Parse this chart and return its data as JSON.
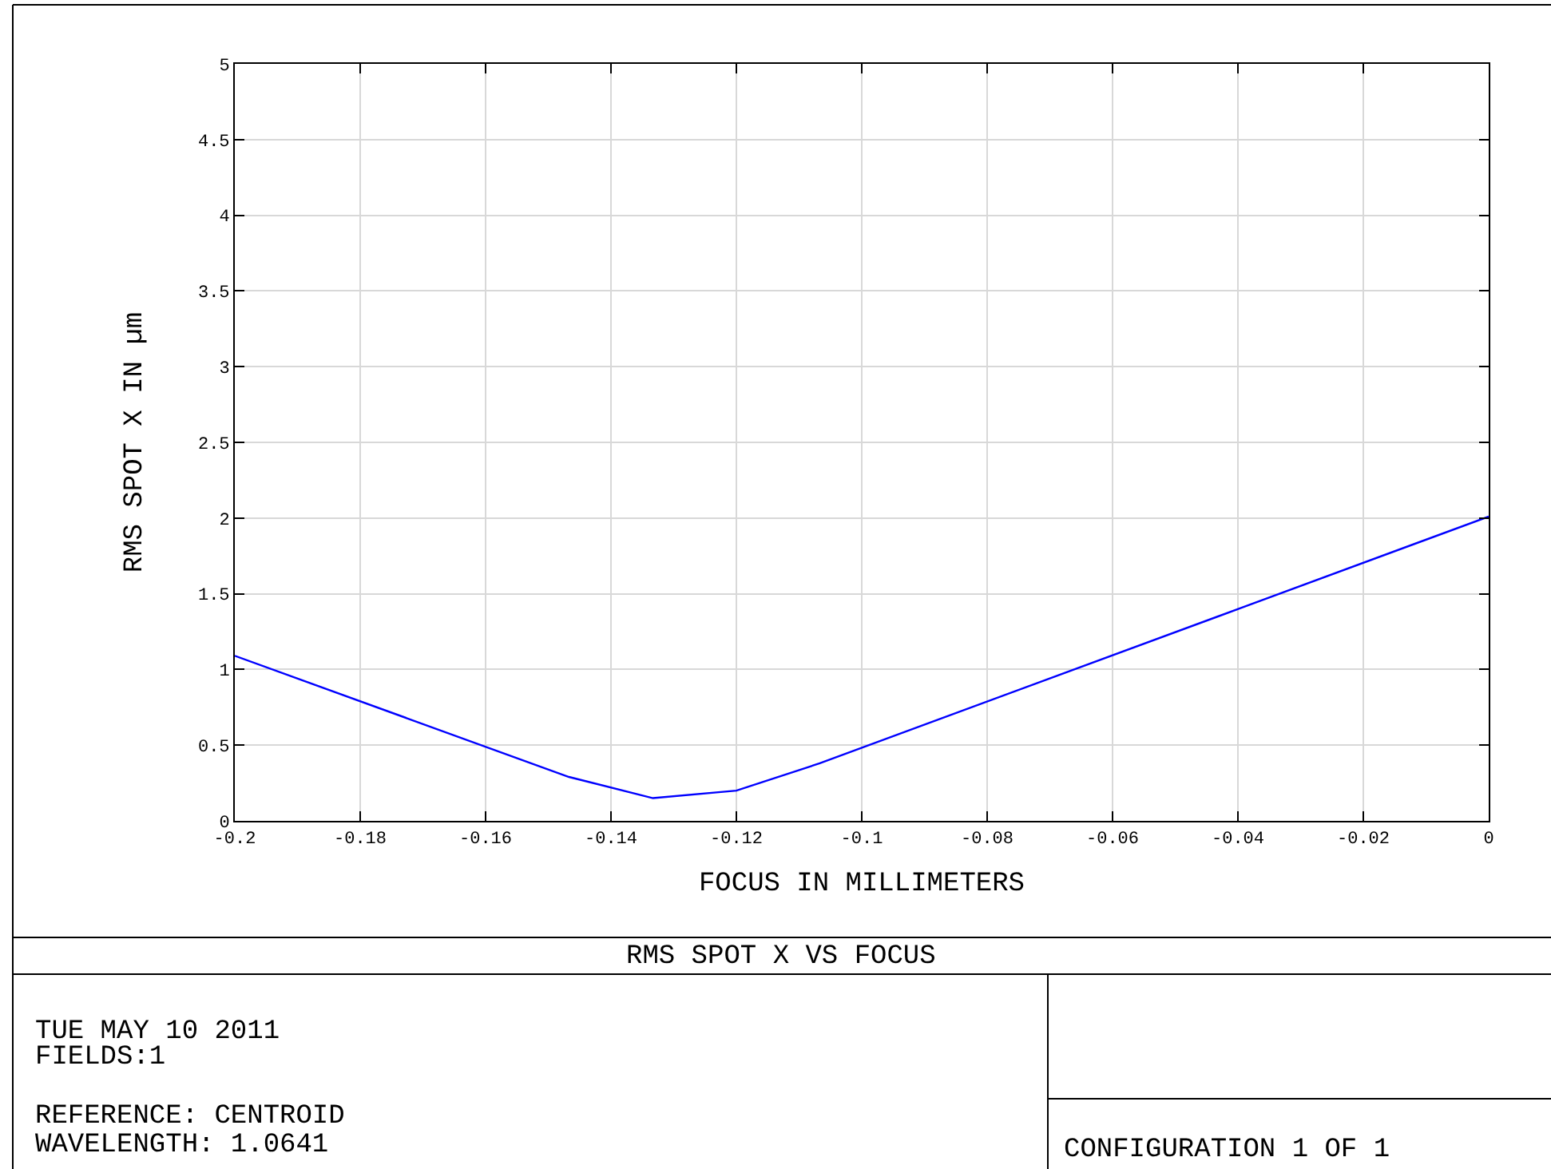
{
  "chart_data": {
    "type": "line",
    "title": "RMS SPOT X VS FOCUS",
    "xlabel": "FOCUS IN MILLIMETERS",
    "ylabel": "RMS SPOT X IN µm",
    "x": [
      -0.2,
      -0.1467,
      -0.1333,
      -0.12,
      -0.1067,
      0
    ],
    "series": [
      {
        "color": "#0000ff",
        "values": [
          1.09,
          0.29,
          0.15,
          0.2,
          0.38,
          2.01
        ]
      }
    ],
    "xlim": [
      -0.2,
      0
    ],
    "xticks": [
      -0.2,
      -0.18,
      -0.16,
      -0.14,
      -0.12,
      -0.1,
      -0.08,
      -0.06,
      -0.04,
      -0.02,
      0
    ],
    "ylim": [
      0,
      5
    ],
    "yticks": [
      0,
      0.5,
      1,
      1.5,
      2,
      2.5,
      3,
      3.5,
      4,
      4.5,
      5
    ],
    "grid": true,
    "marker": "none",
    "line_style": "solid",
    "annotations": [
      "TUE MAY 10 2011",
      "FIELDS:1",
      "REFERENCE: CENTROID",
      "WAVELENGTH: 1.0641",
      "CONFIGURATION 1 OF 1"
    ]
  }
}
